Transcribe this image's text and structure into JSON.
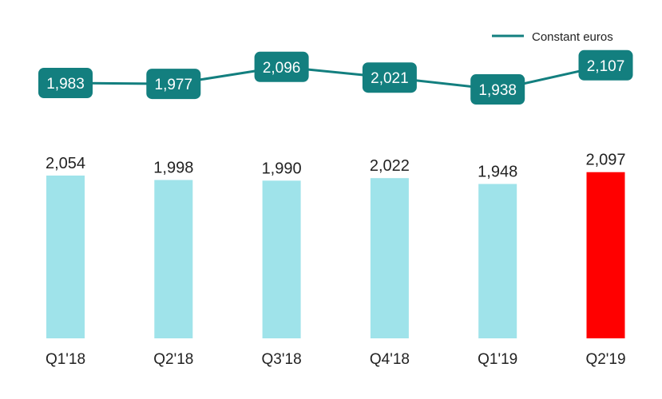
{
  "chart_data": {
    "type": "bar",
    "categories": [
      "Q1'18",
      "Q2'18",
      "Q3'18",
      "Q4'18",
      "Q1'19",
      "Q2'19"
    ],
    "series": [
      {
        "values": [
          2054,
          1998,
          1990,
          2022,
          1948,
          2097
        ],
        "labels": [
          "2,054",
          "1,998",
          "1,990",
          "2,022",
          "1,948",
          "2,097"
        ]
      },
      {
        "name": "Constant euros",
        "type": "line",
        "values": [
          1983,
          1977,
          2096,
          2021,
          1938,
          2107
        ],
        "labels": [
          "1,983",
          "1,977",
          "2,096",
          "2,021",
          "1,938",
          "2,107"
        ]
      }
    ],
    "legend": "top-right",
    "grid": false
  },
  "colors": {
    "bar": "#9fe3ea",
    "bar_highlight": "#ff0000",
    "line": "#137f7f",
    "text": "#222222"
  }
}
